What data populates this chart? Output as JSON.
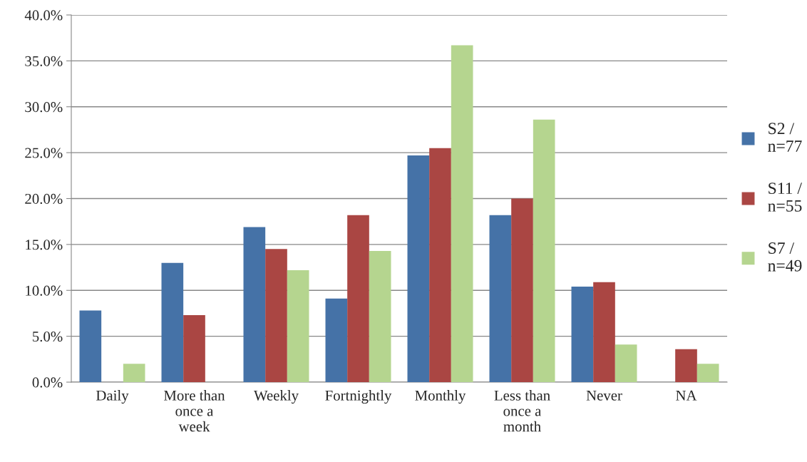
{
  "chart_data": {
    "type": "bar",
    "categories": [
      "Daily",
      "More than\nonce a\nweek",
      "Weekly",
      "Fortnightly",
      "Monthly",
      "Less than\nonce a\nmonth",
      "Never",
      "NA"
    ],
    "series": [
      {
        "name": "S2 /\nn=77",
        "color": "#4572a7",
        "values": [
          7.8,
          13.0,
          16.9,
          9.1,
          24.7,
          18.2,
          10.4,
          0
        ]
      },
      {
        "name": "S11 /\nn=55",
        "color": "#aa4643",
        "values": [
          0,
          7.3,
          14.5,
          18.2,
          25.5,
          20.0,
          10.9,
          3.6
        ]
      },
      {
        "name": "S7 /\nn=49",
        "color": "#b5d58f",
        "values": [
          2.0,
          0,
          12.2,
          14.3,
          36.7,
          28.6,
          4.1,
          2.0
        ]
      }
    ],
    "ylim": [
      0,
      40
    ],
    "yticks": [
      {
        "value": 0,
        "label": "0.0%"
      },
      {
        "value": 5,
        "label": "5.0%"
      },
      {
        "value": 10,
        "label": "10.0%"
      },
      {
        "value": 15,
        "label": "15.0%"
      },
      {
        "value": 20,
        "label": "20.0%"
      },
      {
        "value": 25,
        "label": "25.0%"
      },
      {
        "value": 30,
        "label": "30.0%"
      },
      {
        "value": 35,
        "label": "35.0%"
      },
      {
        "value": 40,
        "label": "40.0%"
      }
    ],
    "grid": "y",
    "legend": "right"
  }
}
